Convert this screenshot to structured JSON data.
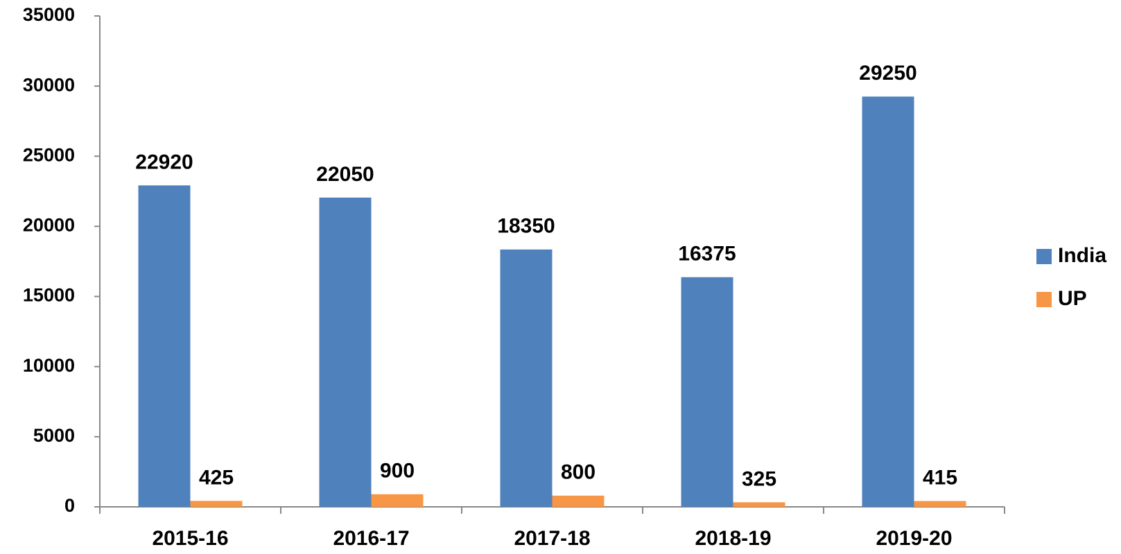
{
  "chart_data": {
    "type": "bar",
    "categories": [
      "2015-16",
      "2016-17",
      "2017-18",
      "2018-19",
      "2019-20"
    ],
    "series": [
      {
        "name": "India",
        "color": "#4f81bd",
        "values": [
          22920,
          22050,
          18350,
          16375,
          29250
        ]
      },
      {
        "name": "UP",
        "color": "#f79646",
        "values": [
          425,
          900,
          800,
          325,
          415
        ]
      }
    ],
    "ylim": [
      0,
      35000
    ],
    "yticks": [
      0,
      5000,
      10000,
      15000,
      20000,
      25000,
      30000,
      35000
    ],
    "grid": false,
    "legend": "right"
  }
}
